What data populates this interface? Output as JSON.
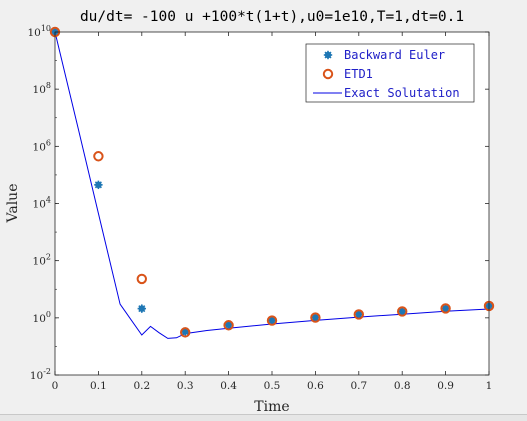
{
  "chart_data": {
    "type": "scatter",
    "title": "du/dt= -100 u +100*t(1+t),u0=1e10,T=1,dt=0.1",
    "xlabel": "Time",
    "ylabel": "Value",
    "xlim": [
      0,
      1
    ],
    "ylim": [
      0.01,
      10000000000
    ],
    "y_scale": "log",
    "grid": false,
    "legend_placement": "top-right",
    "x_ticks": [
      0,
      0.1,
      0.2,
      0.3,
      0.4,
      0.5,
      0.6,
      0.7,
      0.8,
      0.9,
      1
    ],
    "x_tick_labels": [
      "0",
      "0.1",
      "0.2",
      "0.3",
      "0.4",
      "0.5",
      "0.6",
      "0.7",
      "0.8",
      "0.9",
      "1"
    ],
    "y_tick_exponents": [
      -2,
      0,
      2,
      4,
      6,
      8,
      10
    ],
    "y_tick_base": "10",
    "series": [
      {
        "name": "Backward Euler",
        "marker": "filled-asterisk",
        "color": "#1f77b4",
        "x": [
          0,
          0.1,
          0.2,
          0.3,
          0.4,
          0.5,
          0.6,
          0.7,
          0.8,
          0.9,
          1
        ],
        "y": [
          10000000000,
          45000,
          2.1,
          0.33,
          0.57,
          0.81,
          1.03,
          1.33,
          1.67,
          2.14,
          2.6
        ]
      },
      {
        "name": "ETD1",
        "marker": "open-circle",
        "color": "#d95319",
        "x": [
          0,
          0.1,
          0.2,
          0.3,
          0.4,
          0.5,
          0.6,
          0.7,
          0.8,
          0.9,
          1
        ],
        "y": [
          10000000000,
          450000,
          23,
          0.31,
          0.55,
          0.8,
          1.02,
          1.31,
          1.67,
          2.14,
          2.6
        ]
      },
      {
        "name": "Exact Solutation",
        "marker": "line",
        "color": "#0000e6",
        "x": [
          0,
          0.05,
          0.1,
          0.15,
          0.2,
          0.22,
          0.24,
          0.26,
          0.28,
          0.3,
          0.35,
          0.4,
          0.5,
          0.6,
          0.7,
          0.8,
          0.9,
          1
        ],
        "y": [
          10000000000,
          7000000,
          4500,
          3.0,
          0.25,
          0.5,
          0.3,
          0.19,
          0.2,
          0.28,
          0.36,
          0.43,
          0.61,
          0.81,
          1.06,
          1.34,
          1.69,
          2.03
        ]
      }
    ]
  }
}
